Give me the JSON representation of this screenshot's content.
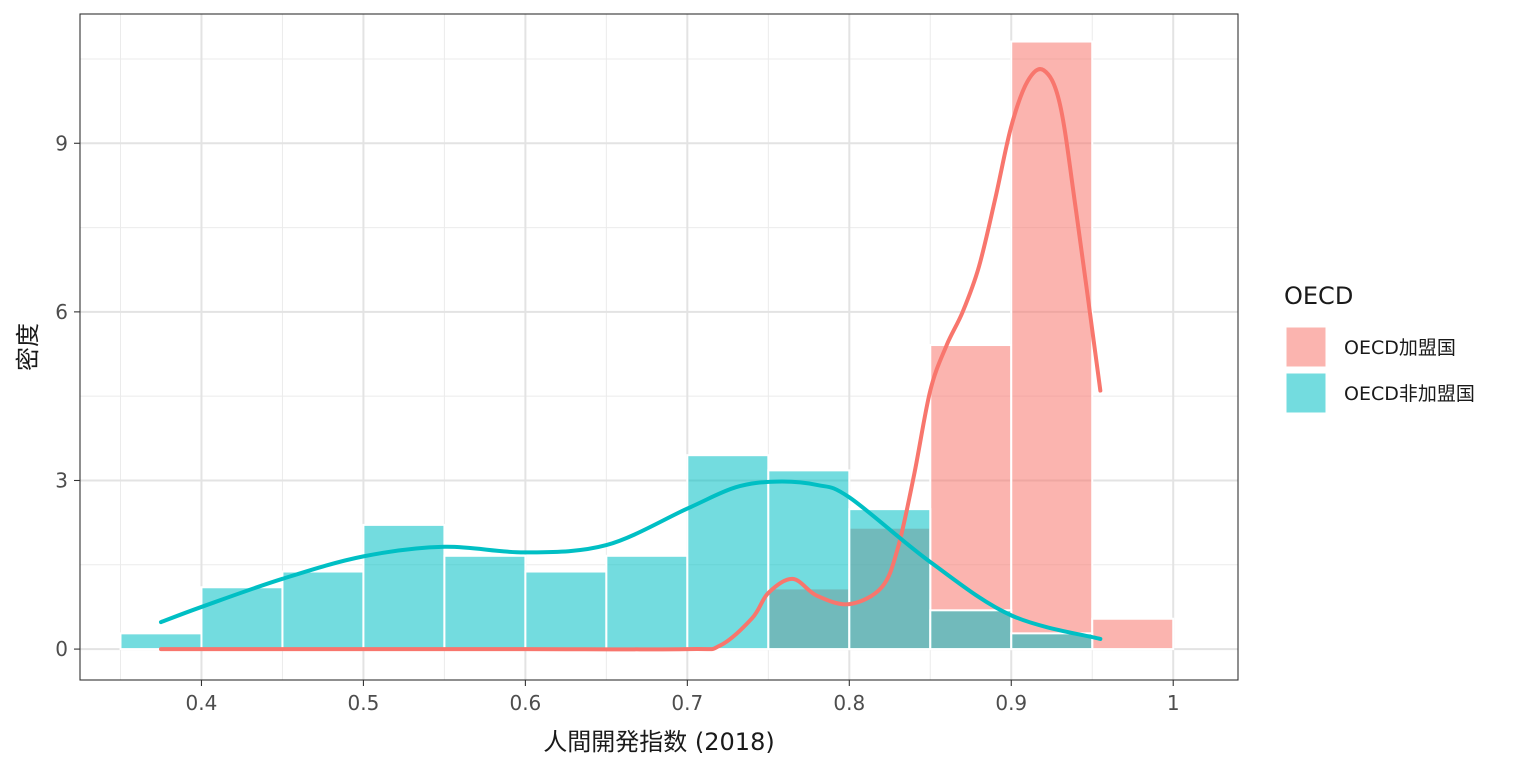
{
  "chart_data": {
    "type": "bar",
    "xlabel": "人間開発指数 (2018)",
    "ylabel": "密度",
    "xlim": [
      0.325,
      1.04
    ],
    "ylim": [
      -0.55,
      11.3
    ],
    "x_ticks": [
      0.4,
      0.5,
      0.6,
      0.7,
      0.8,
      0.9,
      1.0
    ],
    "x_tick_labels": [
      "0.4",
      "0.5",
      "0.6",
      "0.7",
      "0.8",
      "0.9",
      "1"
    ],
    "y_ticks": [
      0,
      3,
      6,
      9
    ],
    "y_tick_labels": [
      "0",
      "3",
      "6",
      "9"
    ],
    "grid": true,
    "bin_width": 0.05,
    "legend": {
      "title": "OECD",
      "position": "right",
      "entries": [
        "OECD加盟国",
        "OECD非加盟国"
      ]
    },
    "series": [
      {
        "name": "OECD加盟国",
        "color": "#F8766D",
        "histogram": {
          "bin_starts": [
            0.75,
            0.8,
            0.85,
            0.9,
            0.95
          ],
          "values": [
            1.08,
            2.16,
            5.41,
            10.81,
            0.54
          ]
        },
        "density": {
          "x": [
            0.375,
            0.4,
            0.5,
            0.6,
            0.7,
            0.72,
            0.74,
            0.75,
            0.765,
            0.78,
            0.8,
            0.82,
            0.83,
            0.84,
            0.85,
            0.86,
            0.87,
            0.88,
            0.89,
            0.9,
            0.91,
            0.92,
            0.93,
            0.94,
            0.955
          ],
          "y": [
            0,
            0,
            0,
            0,
            0,
            0.06,
            0.55,
            1.0,
            1.25,
            0.95,
            0.8,
            1.1,
            1.8,
            3.1,
            4.6,
            5.4,
            6.0,
            6.8,
            8.0,
            9.3,
            10.1,
            10.3,
            9.7,
            7.8,
            4.6
          ]
        }
      },
      {
        "name": "OECD非加盟国",
        "color": "#00BFC4",
        "histogram": {
          "bin_starts": [
            0.35,
            0.4,
            0.45,
            0.5,
            0.55,
            0.6,
            0.65,
            0.7,
            0.75,
            0.8,
            0.85,
            0.9
          ],
          "values": [
            0.28,
            1.1,
            1.38,
            2.21,
            1.66,
            1.38,
            1.66,
            3.45,
            3.18,
            2.49,
            0.69,
            0.28
          ]
        },
        "density": {
          "x": [
            0.375,
            0.4,
            0.45,
            0.5,
            0.55,
            0.6,
            0.65,
            0.7,
            0.73,
            0.755,
            0.78,
            0.8,
            0.85,
            0.9,
            0.955
          ],
          "y": [
            0.48,
            0.75,
            1.25,
            1.65,
            1.82,
            1.72,
            1.85,
            2.5,
            2.88,
            2.98,
            2.92,
            2.7,
            1.55,
            0.6,
            0.18
          ]
        }
      }
    ]
  }
}
